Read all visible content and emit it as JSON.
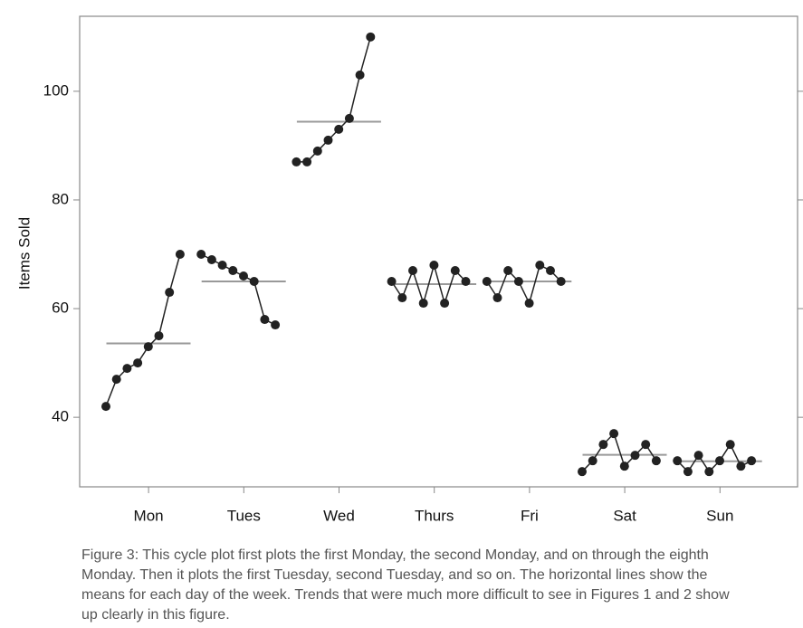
{
  "chart_data": {
    "type": "line",
    "y_label": "Items Sold",
    "categories": [
      "Mon",
      "Tues",
      "Wed",
      "Thurs",
      "Fri",
      "Sat",
      "Sun"
    ],
    "values": [
      [
        42,
        47,
        49,
        50,
        53,
        55,
        63,
        70
      ],
      [
        70,
        69,
        68,
        67,
        66,
        65,
        58,
        57
      ],
      [
        87,
        87,
        89,
        91,
        93,
        95,
        103,
        110
      ],
      [
        65,
        62,
        67,
        61,
        68,
        61,
        67,
        65
      ],
      [
        65,
        62,
        67,
        65,
        61,
        68,
        67,
        65
      ],
      [
        30,
        32,
        35,
        37,
        31,
        33,
        35,
        32
      ],
      [
        32,
        30,
        33,
        30,
        32,
        35,
        31,
        32
      ]
    ],
    "means": [
      53.6,
      65,
      94.4,
      64.5,
      65,
      33.1,
      31.9
    ],
    "color": "#222222",
    "mean_color": "#999999",
    "ylim": [
      27.2,
      113.8
    ],
    "yticks": [
      40,
      60,
      80,
      100
    ]
  },
  "caption": "Figure 3: This cycle plot first plots the first Monday, the second Monday, and on through the eighth Monday. Then it plots the first Tuesday, second Tuesday, and so on. The horizontal lines show the means for each day of the week. Trends that were much more difficult to see in Figures 1 and 2 show up clearly in this figure."
}
